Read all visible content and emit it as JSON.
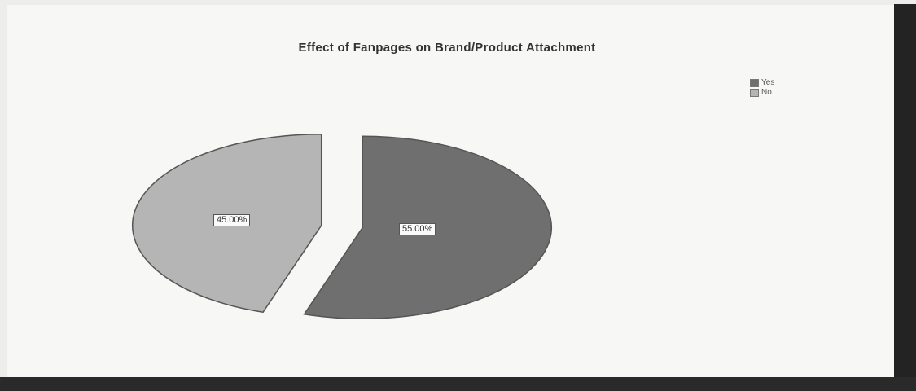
{
  "chart_data": {
    "type": "pie",
    "title": "Effect of Fanpages on Brand/Product Attachment",
    "categories": [
      "Yes",
      "No"
    ],
    "values": [
      55.0,
      45.0
    ],
    "data_labels": [
      "55.00%",
      "45.00%"
    ],
    "colors": [
      "#6f6f6f",
      "#b5b5b5"
    ],
    "exploded": true,
    "legend_position": "top-right"
  }
}
